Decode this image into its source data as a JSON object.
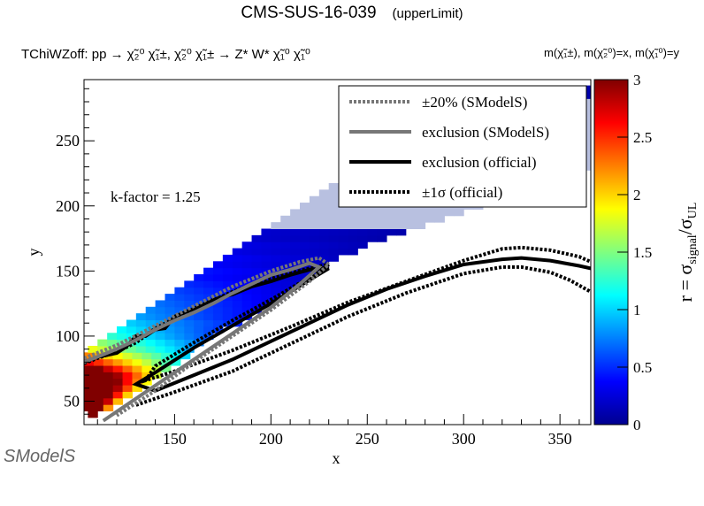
{
  "title": "CMS-SUS-16-039",
  "subtitle": "(upperLimit)",
  "process_label": "TChiWZoff: pp → χ̃₂⁰ χ̃₁±, χ̃₂⁰ χ̃₁± → Z* W* χ̃₁⁰ χ̃₁⁰",
  "mass_label": "m(χ̃₁±), m(χ̃₂⁰)=x, m(χ̃₁⁰)=y",
  "logo_text": "SModelS",
  "chart_data": {
    "type": "heatmap",
    "title": "CMS-SUS-16-039 (upperLimit)",
    "xlabel": "x",
    "ylabel": "y",
    "zlabel": "r = σ_signal/σ_UL",
    "xlim": [
      103,
      366
    ],
    "ylim": [
      32,
      297
    ],
    "zlim": [
      0,
      3
    ],
    "xticks": [
      150,
      200,
      250,
      300,
      350
    ],
    "yticks": [
      50,
      100,
      150,
      200,
      250
    ],
    "zticks": [
      0,
      0.5,
      1,
      1.5,
      2,
      2.5,
      3
    ],
    "colormap": "jet",
    "annotation": "k-factor = 1.25",
    "legend": {
      "placement": "top-right",
      "entries": [
        {
          "label": "±20% (SModelS)",
          "style": "dotted",
          "color": "#777777"
        },
        {
          "label": "exclusion (SModelS)",
          "style": "solid",
          "color": "#777777"
        },
        {
          "label": "exclusion (official)",
          "style": "solid",
          "color": "#000000"
        },
        {
          "label": "±1σ (official)",
          "style": "dotted",
          "color": "#000000"
        }
      ]
    },
    "heatmap_band": {
      "description": "Diagonal band of r values; high r (>3, dark red) near low y/low x, decreasing to blue (~0.1) and pale beyond",
      "bins_x_step": 5,
      "bins_y_step": 5,
      "rows": [
        {
          "y": 40,
          "x_from": 105,
          "x_to": 110,
          "r": 3
        },
        {
          "y": 45,
          "x_from": 103,
          "x_to": 115,
          "r": 3
        },
        {
          "y": 50,
          "x_from": 103,
          "x_to": 120,
          "r": 3
        },
        {
          "y": 55,
          "x_from": 103,
          "x_to": 125,
          "r": 3
        },
        {
          "y": 60,
          "x_from": 103,
          "x_to": 130,
          "r": 3
        },
        {
          "y": 65,
          "x_from": 103,
          "x_to": 135,
          "r": 2.9
        },
        {
          "y": 70,
          "x_from": 103,
          "x_to": 140,
          "r": 2.7
        },
        {
          "y": 75,
          "x_from": 103,
          "x_to": 145,
          "r": 2.3
        },
        {
          "y": 80,
          "x_from": 103,
          "x_to": 150,
          "r": 1.9
        },
        {
          "y": 85,
          "x_from": 103,
          "x_to": 155,
          "r": 1.6
        },
        {
          "y": 90,
          "x_from": 105,
          "x_to": 160,
          "r": 1.3
        },
        {
          "y": 95,
          "x_from": 110,
          "x_to": 165,
          "r": 1.1
        },
        {
          "y": 100,
          "x_from": 115,
          "x_to": 170,
          "r": 0.9
        },
        {
          "y": 105,
          "x_from": 120,
          "x_to": 175,
          "r": 0.8
        },
        {
          "y": 110,
          "x_from": 125,
          "x_to": 185,
          "r": 0.7
        },
        {
          "y": 115,
          "x_from": 130,
          "x_to": 190,
          "r": 0.6
        },
        {
          "y": 120,
          "x_from": 135,
          "x_to": 195,
          "r": 0.55
        },
        {
          "y": 125,
          "x_from": 140,
          "x_to": 200,
          "r": 0.5
        },
        {
          "y": 130,
          "x_from": 145,
          "x_to": 205,
          "r": 0.45
        },
        {
          "y": 135,
          "x_from": 150,
          "x_to": 210,
          "r": 0.4
        },
        {
          "y": 140,
          "x_from": 155,
          "x_to": 215,
          "r": 0.35
        },
        {
          "y": 145,
          "x_from": 160,
          "x_to": 220,
          "r": 0.3
        },
        {
          "y": 150,
          "x_from": 165,
          "x_to": 225,
          "r": 0.3
        },
        {
          "y": 155,
          "x_from": 170,
          "x_to": 230,
          "r": 0.25
        },
        {
          "y": 160,
          "x_from": 175,
          "x_to": 235,
          "r": 0.25
        },
        {
          "y": 165,
          "x_from": 180,
          "x_to": 245,
          "r": 0.2
        },
        {
          "y": 170,
          "x_from": 185,
          "x_to": 250,
          "r": 0.2
        },
        {
          "y": 175,
          "x_from": 190,
          "x_to": 260,
          "r": 0.15
        },
        {
          "y": 180,
          "x_from": 195,
          "x_to": 270,
          "r": 0.15
        },
        {
          "y": 185,
          "x_from": 200,
          "x_to": 280,
          "r": 0.12
        },
        {
          "y": 190,
          "x_from": 205,
          "x_to": 290,
          "r": 0.1
        },
        {
          "y": 195,
          "x_from": 210,
          "x_to": 300,
          "r": 0.1
        },
        {
          "y": 200,
          "x_from": 215,
          "x_to": 310,
          "r": 0.1
        },
        {
          "y": 205,
          "x_from": 220,
          "x_to": 320,
          "r": 0.1
        },
        {
          "y": 210,
          "x_from": 225,
          "x_to": 330,
          "r": 0.1
        },
        {
          "y": 215,
          "x_from": 230,
          "x_to": 340,
          "r": 0.1
        },
        {
          "y": 220,
          "x_from": 240,
          "x_to": 350,
          "r": 0.1
        },
        {
          "y": 225,
          "x_from": 245,
          "x_to": 360,
          "r": 0.1
        },
        {
          "y": 230,
          "x_from": 255,
          "x_to": 366,
          "r": 0.1
        },
        {
          "y": 235,
          "x_from": 260,
          "x_to": 366,
          "r": 0.1
        },
        {
          "y": 240,
          "x_from": 265,
          "x_to": 366,
          "r": 0.1
        },
        {
          "y": 245,
          "x_from": 270,
          "x_to": 366,
          "r": 0.1
        },
        {
          "y": 250,
          "x_from": 280,
          "x_to": 366,
          "r": 0.1
        },
        {
          "y": 255,
          "x_from": 285,
          "x_to": 366,
          "r": 0.1
        },
        {
          "y": 260,
          "x_from": 290,
          "x_to": 366,
          "r": 0.1
        },
        {
          "y": 265,
          "x_from": 295,
          "x_to": 366,
          "r": 0.1
        },
        {
          "y": 270,
          "x_from": 300,
          "x_to": 366,
          "r": 0.1
        },
        {
          "y": 275,
          "x_from": 310,
          "x_to": 366,
          "r": 0.1
        },
        {
          "y": 280,
          "x_from": 320,
          "x_to": 366,
          "r": 0.1
        },
        {
          "y": 285,
          "x_from": 330,
          "x_to": 366,
          "r": 0.1
        },
        {
          "y": 290,
          "x_from": 340,
          "x_to": 366,
          "r": 0.1
        }
      ]
    },
    "series": [
      {
        "name": "exclusion (official)",
        "style": "solid",
        "color": "#000000",
        "points": [
          [
            103,
            80
          ],
          [
            110,
            84
          ],
          [
            120,
            87
          ],
          [
            125,
            92
          ],
          [
            130,
            100
          ],
          [
            135,
            100
          ],
          [
            140,
            105
          ],
          [
            145,
            106
          ],
          [
            150,
            115
          ],
          [
            160,
            121
          ],
          [
            170,
            128
          ],
          [
            180,
            132
          ],
          [
            190,
            138
          ],
          [
            200,
            142
          ],
          [
            210,
            147
          ],
          [
            220,
            151
          ],
          [
            230,
            152
          ],
          [
            220,
            143
          ],
          [
            200,
            125
          ],
          [
            180,
            108
          ],
          [
            160,
            91
          ],
          [
            140,
            72
          ],
          [
            130,
            63
          ],
          [
            140,
            58
          ],
          [
            160,
            70
          ],
          [
            180,
            82
          ],
          [
            200,
            96
          ],
          [
            220,
            110
          ],
          [
            240,
            124
          ],
          [
            260,
            136
          ],
          [
            280,
            146
          ],
          [
            300,
            155
          ],
          [
            320,
            159
          ],
          [
            330,
            160
          ],
          [
            345,
            158
          ],
          [
            360,
            154
          ],
          [
            366,
            152
          ]
        ]
      },
      {
        "name": "±1σ (official) upper",
        "style": "dotted",
        "color": "#000000",
        "points": [
          [
            103,
            79
          ],
          [
            110,
            83
          ],
          [
            120,
            88
          ],
          [
            130,
            95
          ],
          [
            140,
            106
          ],
          [
            160,
            121
          ],
          [
            180,
            134
          ],
          [
            200,
            145
          ],
          [
            220,
            152
          ],
          [
            230,
            155
          ],
          [
            220,
            145
          ],
          [
            200,
            128
          ],
          [
            180,
            112
          ],
          [
            160,
            95
          ],
          [
            140,
            77
          ],
          [
            135,
            66
          ],
          [
            150,
            73
          ],
          [
            180,
            89
          ],
          [
            210,
            107
          ],
          [
            240,
            126
          ],
          [
            270,
            142
          ],
          [
            300,
            158
          ],
          [
            320,
            167
          ],
          [
            330,
            168
          ],
          [
            345,
            166
          ],
          [
            360,
            161
          ],
          [
            366,
            157
          ]
        ]
      },
      {
        "name": "±1σ (official) lower",
        "style": "dotted",
        "color": "#000000",
        "points": [
          [
            130,
            47
          ],
          [
            150,
            57
          ],
          [
            180,
            73
          ],
          [
            210,
            94
          ],
          [
            240,
            115
          ],
          [
            270,
            133
          ],
          [
            300,
            148
          ],
          [
            320,
            153
          ],
          [
            330,
            153
          ],
          [
            345,
            149
          ],
          [
            355,
            143
          ],
          [
            366,
            134
          ]
        ]
      },
      {
        "name": "exclusion (SModelS)",
        "style": "solid",
        "color": "#777777",
        "points": [
          [
            103,
            80
          ],
          [
            120,
            90
          ],
          [
            130,
            97
          ],
          [
            140,
            105
          ],
          [
            150,
            112
          ],
          [
            160,
            118
          ],
          [
            170,
            125
          ],
          [
            180,
            133
          ],
          [
            190,
            140
          ],
          [
            200,
            147
          ],
          [
            210,
            151
          ],
          [
            220,
            156
          ],
          [
            225,
            153
          ],
          [
            215,
            140
          ],
          [
            200,
            122
          ],
          [
            180,
            102
          ],
          [
            160,
            82
          ],
          [
            140,
            62
          ],
          [
            120,
            42
          ],
          [
            113,
            35
          ]
        ]
      },
      {
        "name": "±20% (SModelS)",
        "style": "dotted",
        "color": "#777777",
        "points": [
          [
            103,
            83
          ],
          [
            120,
            93
          ],
          [
            140,
            108
          ],
          [
            160,
            123
          ],
          [
            180,
            138
          ],
          [
            200,
            150
          ],
          [
            215,
            157
          ],
          [
            225,
            160
          ],
          [
            230,
            155
          ],
          [
            220,
            142
          ],
          [
            200,
            120
          ],
          [
            180,
            100
          ],
          [
            160,
            80
          ],
          [
            140,
            58
          ],
          [
            120,
            39
          ]
        ]
      }
    ]
  }
}
